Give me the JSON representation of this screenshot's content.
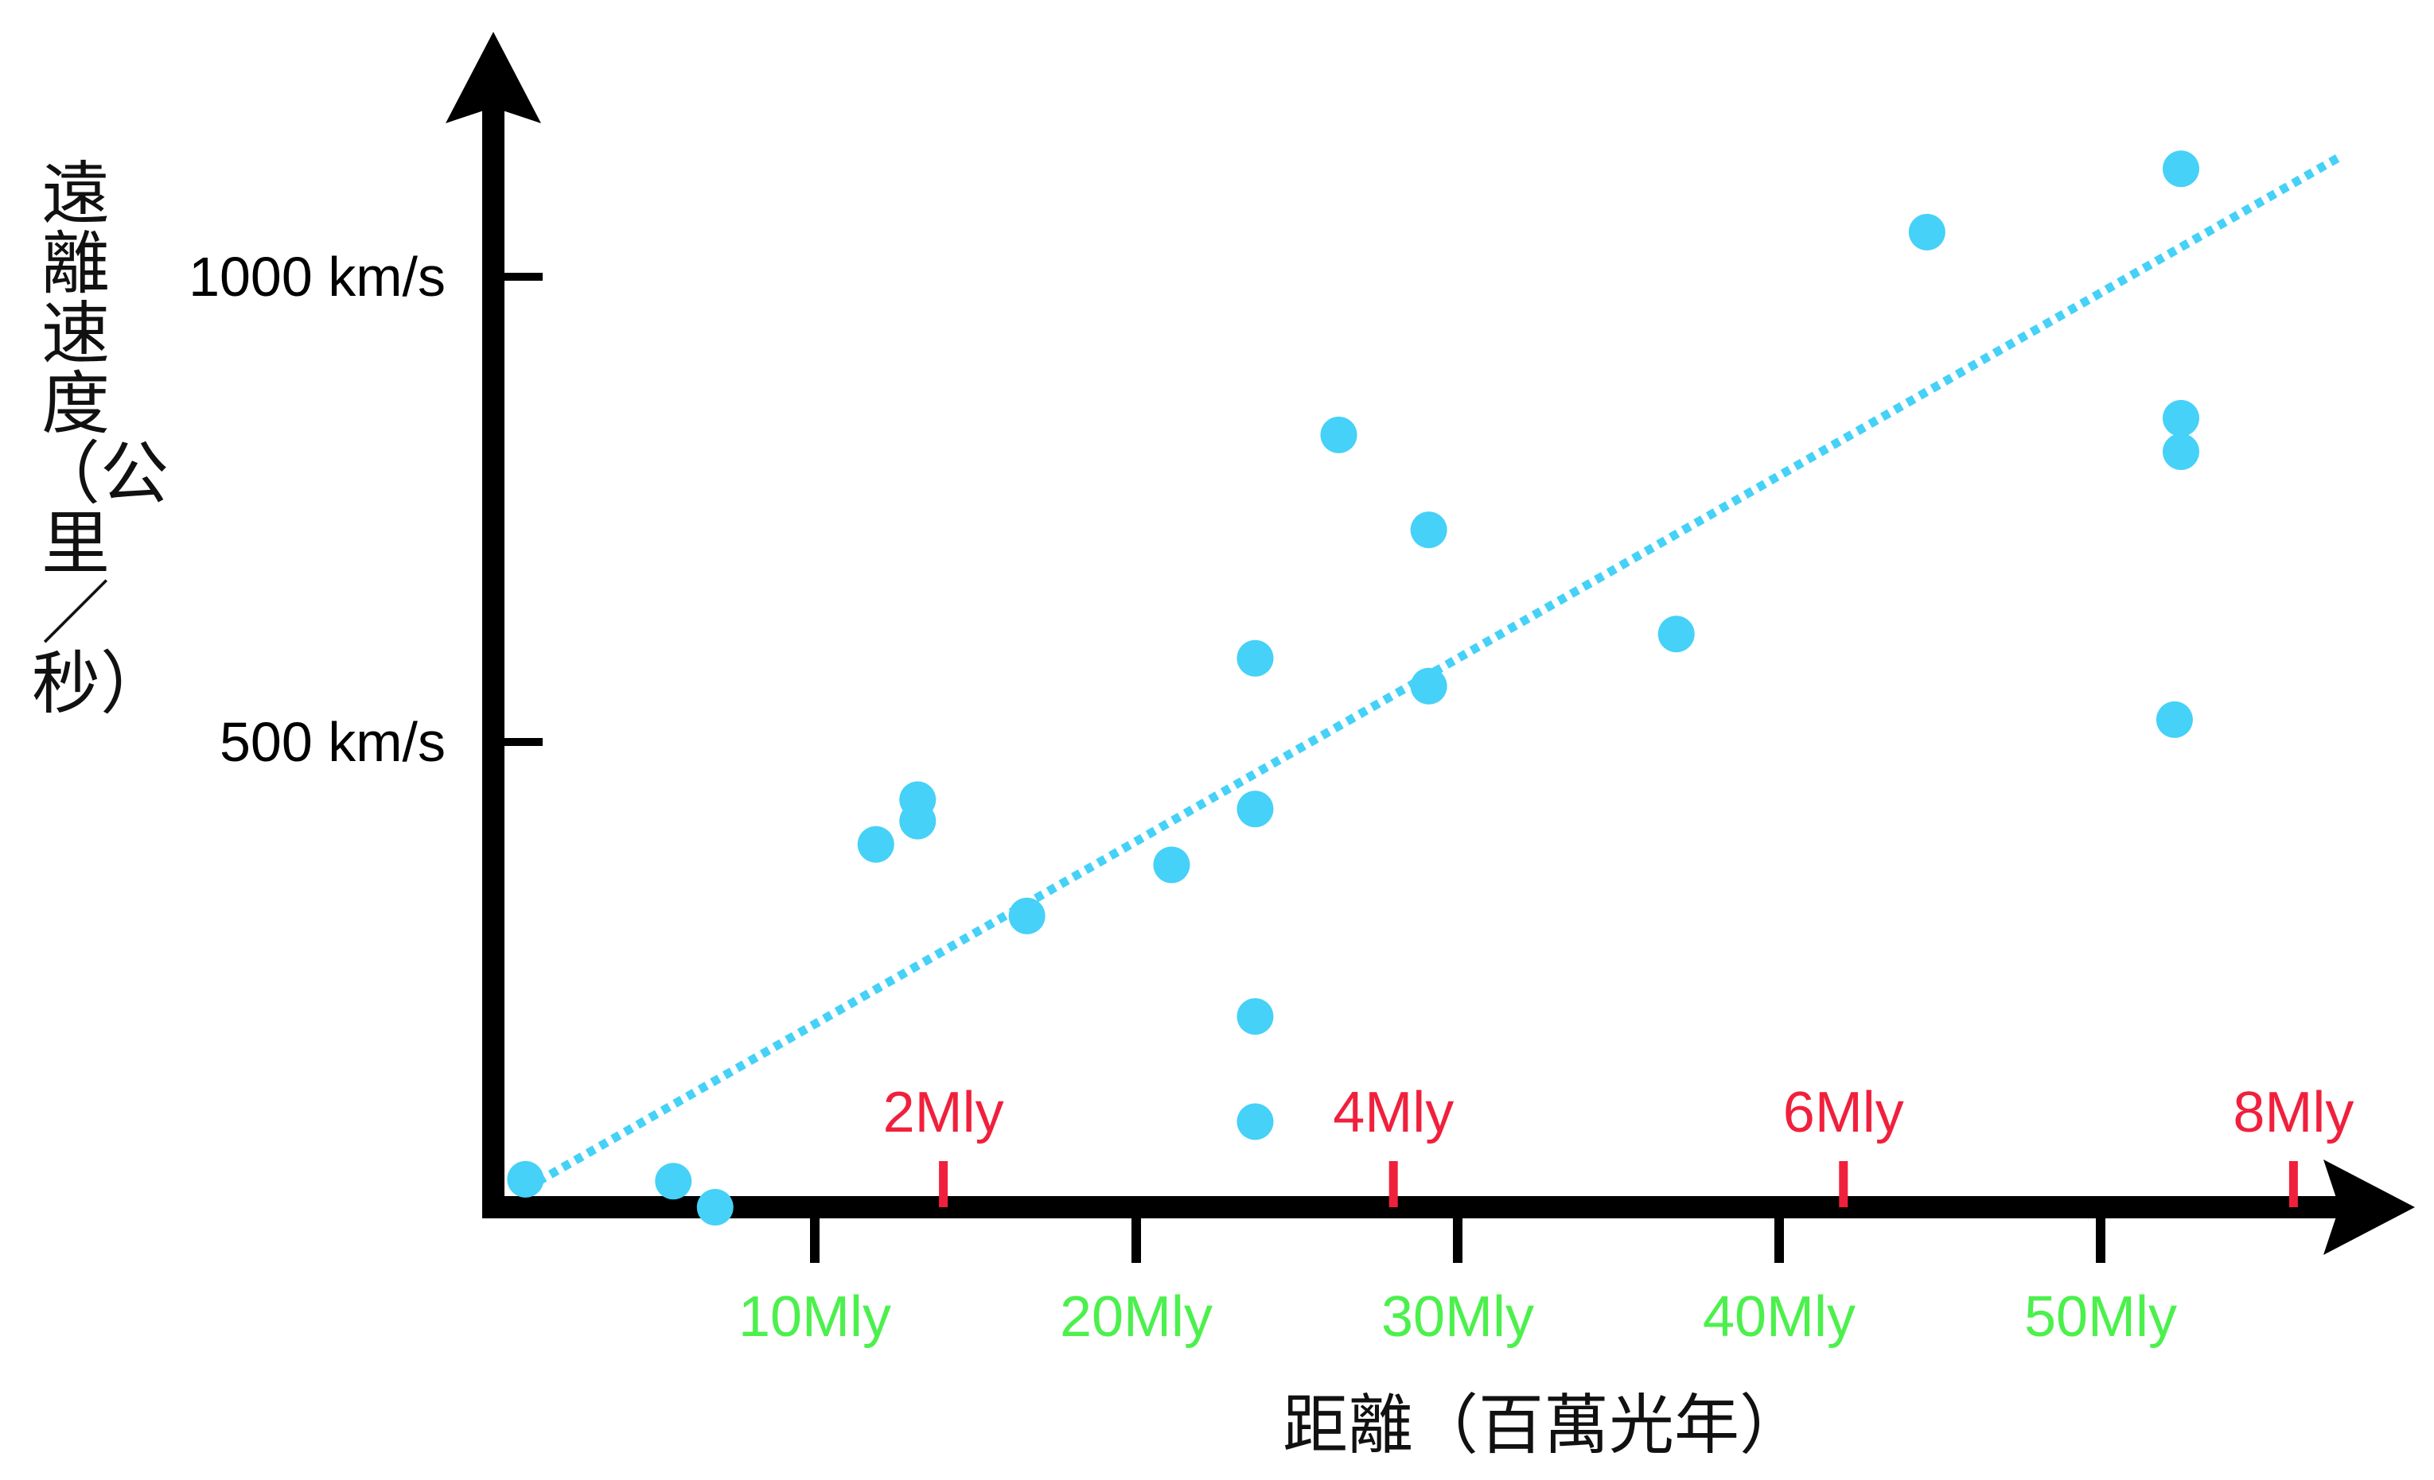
{
  "chart_data": {
    "type": "scatter",
    "title": "",
    "xlabel": "距離（百萬光年）",
    "ylabel": "遠離速度（公里／秒）",
    "xlim": [
      0,
      57.5
    ],
    "ylim": [
      0,
      1130
    ],
    "x_ticks": [
      {
        "value": 10,
        "label": "10Mly"
      },
      {
        "value": 20,
        "label": "20Mly"
      },
      {
        "value": 30,
        "label": "30Mly"
      },
      {
        "value": 40,
        "label": "40Mly"
      },
      {
        "value": 50,
        "label": "50Mly"
      }
    ],
    "x_ticks_secondary": [
      {
        "value": 14,
        "label": "2Mly"
      },
      {
        "value": 28,
        "label": "4Mly"
      },
      {
        "value": 42,
        "label": "6Mly"
      },
      {
        "value": 56,
        "label": "8Mly"
      }
    ],
    "y_ticks": [
      {
        "value": 500,
        "label": "500 km/s"
      },
      {
        "value": 1000,
        "label": "1000 km/s"
      }
    ],
    "series": [
      {
        "points": [
          {
            "x": 1.0,
            "y": 30
          },
          {
            "x": 5.6,
            "y": 28
          },
          {
            "x": 6.9,
            "y": 0
          },
          {
            "x": 11.9,
            "y": 390
          },
          {
            "x": 13.2,
            "y": 438
          },
          {
            "x": 13.2,
            "y": 415
          },
          {
            "x": 16.6,
            "y": 313
          },
          {
            "x": 21.1,
            "y": 368
          },
          {
            "x": 23.7,
            "y": 590
          },
          {
            "x": 23.7,
            "y": 428
          },
          {
            "x": 23.7,
            "y": 205
          },
          {
            "x": 23.7,
            "y": 92
          },
          {
            "x": 26.3,
            "y": 830
          },
          {
            "x": 29.1,
            "y": 728
          },
          {
            "x": 29.1,
            "y": 560
          },
          {
            "x": 36.8,
            "y": 616
          },
          {
            "x": 44.6,
            "y": 1048
          },
          {
            "x": 52.5,
            "y": 1116
          },
          {
            "x": 52.5,
            "y": 848
          },
          {
            "x": 52.5,
            "y": 812
          },
          {
            "x": 52.3,
            "y": 524
          }
        ]
      }
    ],
    "trendline": {
      "x1": 1.0,
      "y1": 20,
      "x2": 57.5,
      "y2": 1130
    },
    "grid": false,
    "colors": {
      "points": "#45d1f8",
      "trendline": "#45d1f8",
      "axis": "#000000",
      "primary_tick_labels": "#4cf04c",
      "secondary_tick_labels": "#f0203c",
      "y_tick_labels": "#000000"
    }
  }
}
